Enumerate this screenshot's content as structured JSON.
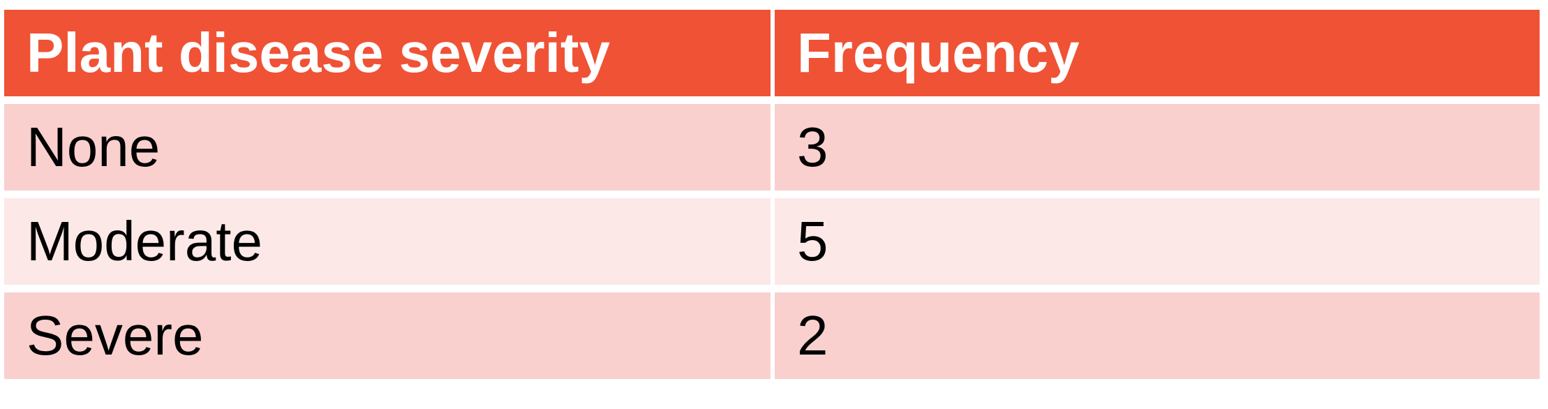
{
  "colors": {
    "header_bg": "#F05235",
    "row_dark_bg": "#F9D0CE",
    "row_light_bg": "#FCE8E7",
    "header_text": "#FFFFFF",
    "body_text": "#000000"
  },
  "table": {
    "headers": [
      "Plant disease severity",
      "Frequency"
    ],
    "rows": [
      [
        "None",
        "3"
      ],
      [
        "Moderate",
        "5"
      ],
      [
        "Severe",
        "2"
      ]
    ]
  }
}
